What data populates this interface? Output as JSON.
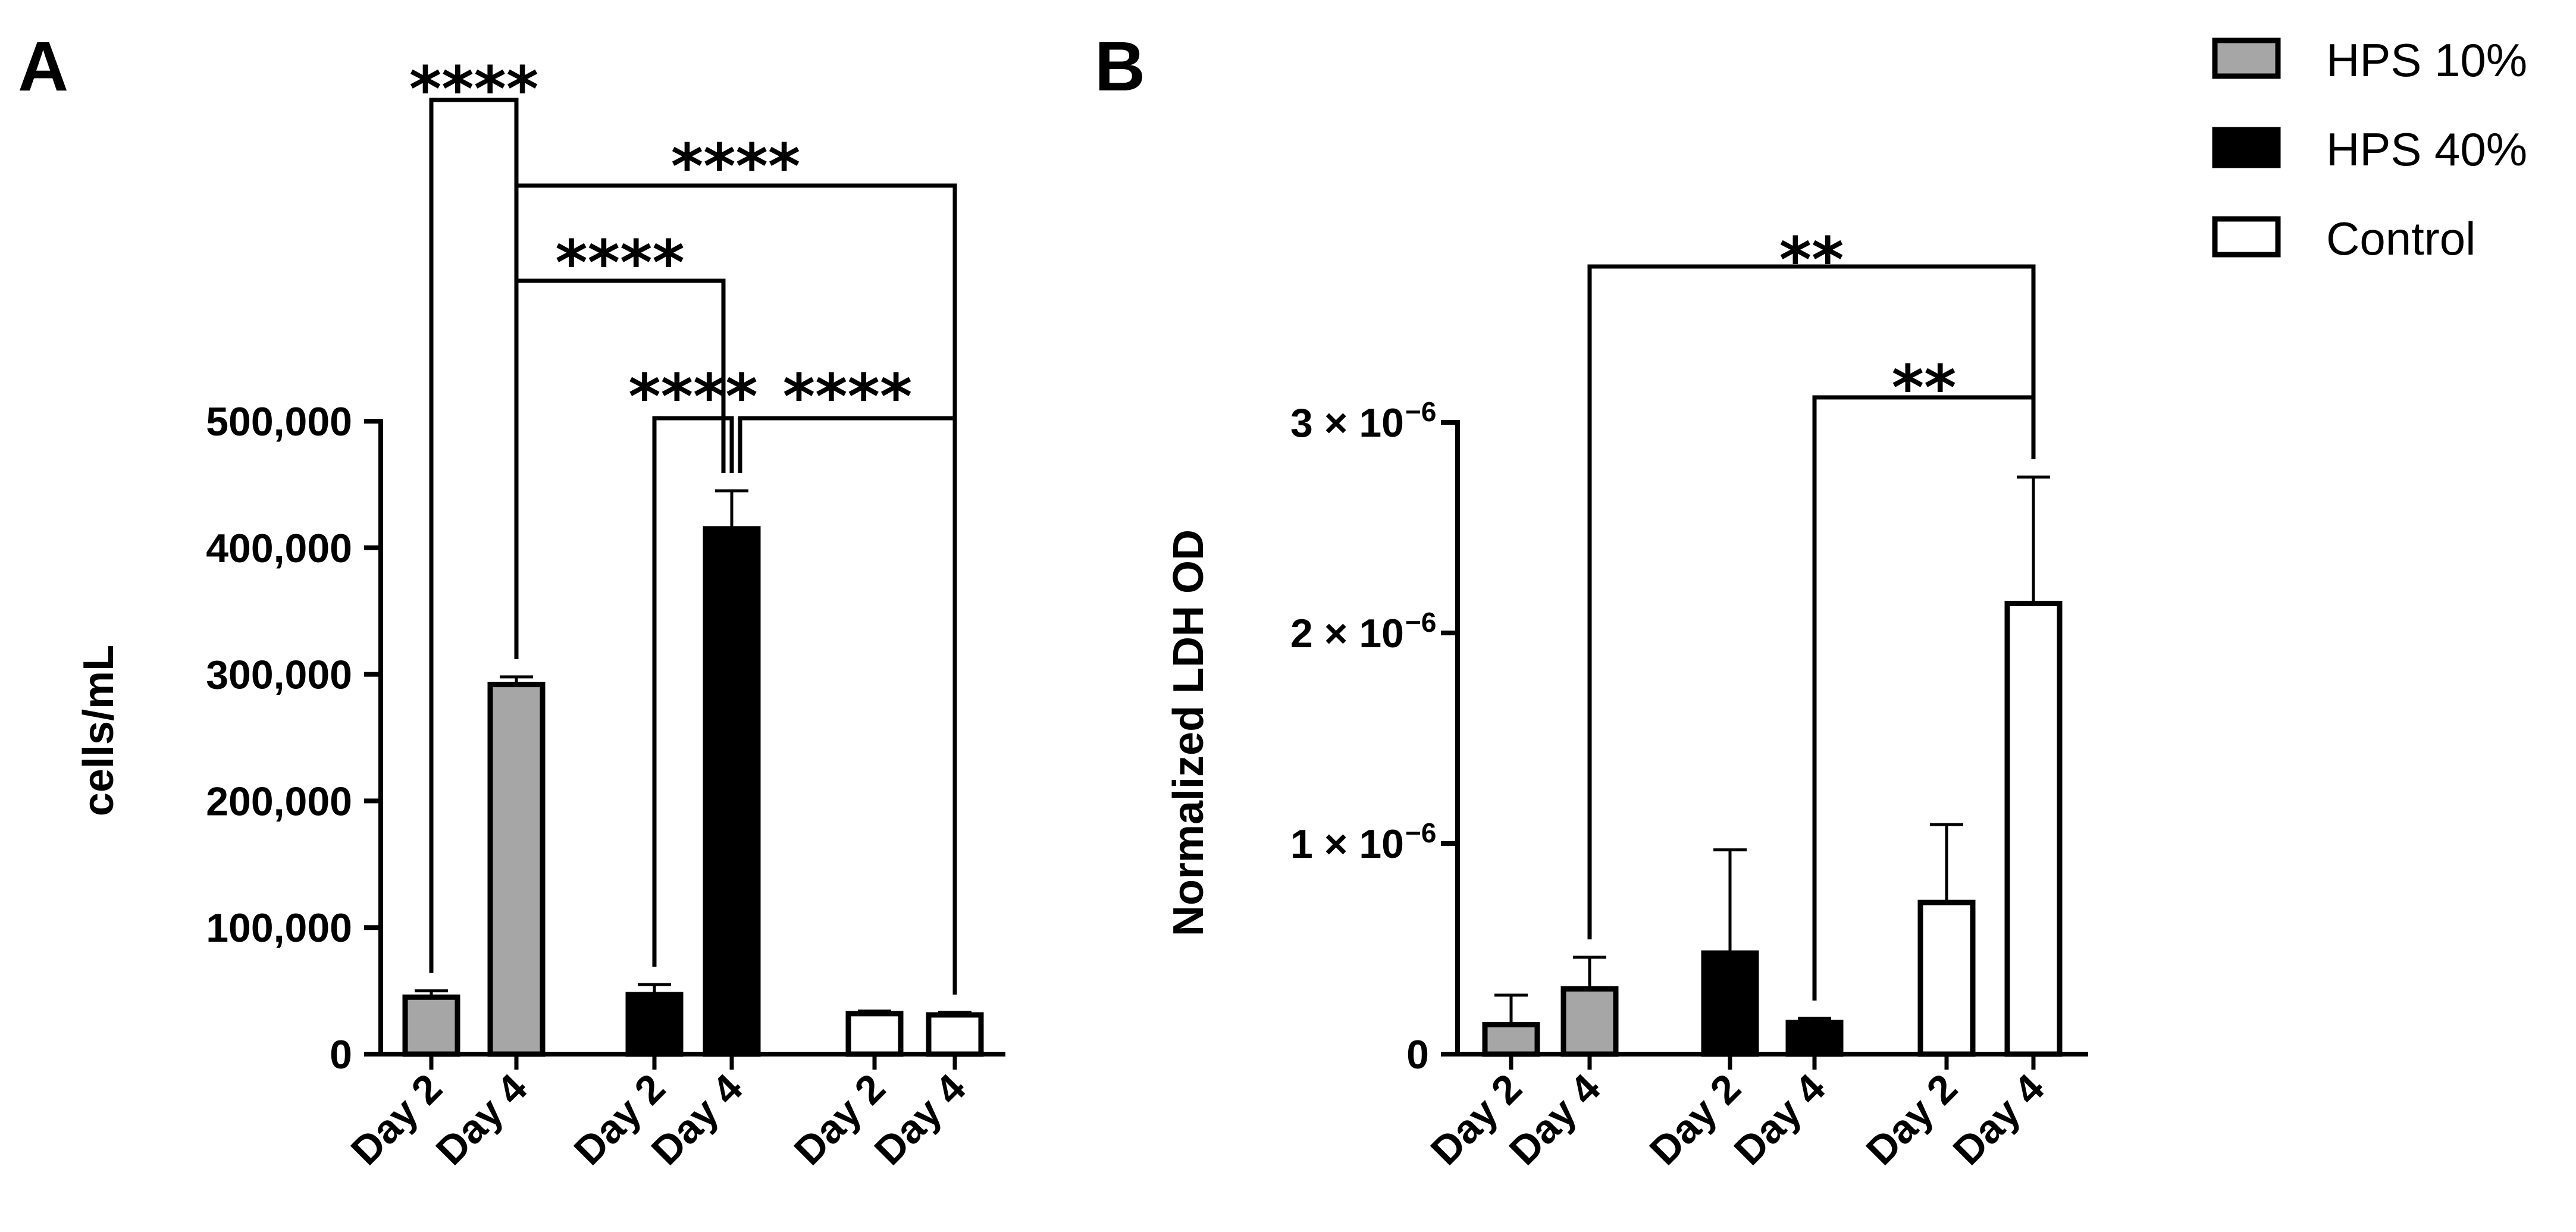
{
  "legend": {
    "items": [
      {
        "label": "HPS 10%",
        "color": "#a6a6a6"
      },
      {
        "label": "HPS 40%",
        "color": "#000000"
      },
      {
        "label": "Control",
        "color": "#ffffff"
      }
    ]
  },
  "chart_data": [
    {
      "panel": "A",
      "type": "bar",
      "ylabel": "cells/mL",
      "ylim": [
        0,
        500000
      ],
      "yticks": [
        "0",
        "100,000",
        "200,000",
        "300,000",
        "400,000",
        "500,000"
      ],
      "ytick_values": [
        0,
        100000,
        200000,
        300000,
        400000,
        500000
      ],
      "categories": [
        "Day 2",
        "Day 4",
        "Day 2",
        "Day 4",
        "Day 2",
        "Day 4"
      ],
      "groups": [
        "HPS 10%",
        "HPS 10%",
        "HPS 40%",
        "HPS 40%",
        "Control",
        "Control"
      ],
      "values": [
        45000,
        292000,
        47000,
        415000,
        32000,
        31000
      ],
      "errors": [
        5000,
        6000,
        8000,
        30000,
        2000,
        2000
      ],
      "significance": [
        {
          "from": 0,
          "to": 1,
          "label": "****"
        },
        {
          "from": 1,
          "to": 5,
          "label": "****"
        },
        {
          "from": 1,
          "to": 3,
          "label": "****"
        },
        {
          "from": 3,
          "to": 5,
          "label": "****"
        },
        {
          "from": 2,
          "to": 3,
          "label": "****"
        }
      ]
    },
    {
      "panel": "B",
      "type": "bar",
      "ylabel": "Normalized LDH OD",
      "ylim": [
        0,
        3e-06
      ],
      "yticks": [
        "0",
        "1 × 10",
        "2 × 10",
        "3 × 10"
      ],
      "ytick_exponent": "−6",
      "ytick_values": [
        0,
        1e-06,
        2e-06,
        3e-06
      ],
      "categories": [
        "Day 2",
        "Day 4",
        "Day 2",
        "Day 4",
        "Day 2",
        "Day 4"
      ],
      "groups": [
        "HPS 10%",
        "HPS 10%",
        "HPS 40%",
        "HPS 40%",
        "Control",
        "Control"
      ],
      "values": [
        1.4e-07,
        3.1e-07,
        4.8e-07,
        1.5e-07,
        7.2e-07,
        2.14e-06
      ],
      "errors": [
        1.4e-07,
        1.5e-07,
        4.9e-07,
        2e-08,
        3.7e-07,
        6e-07
      ],
      "significance": [
        {
          "from": 1,
          "to": 5,
          "label": "**"
        },
        {
          "from": 3,
          "to": 5,
          "label": "**"
        }
      ]
    }
  ]
}
